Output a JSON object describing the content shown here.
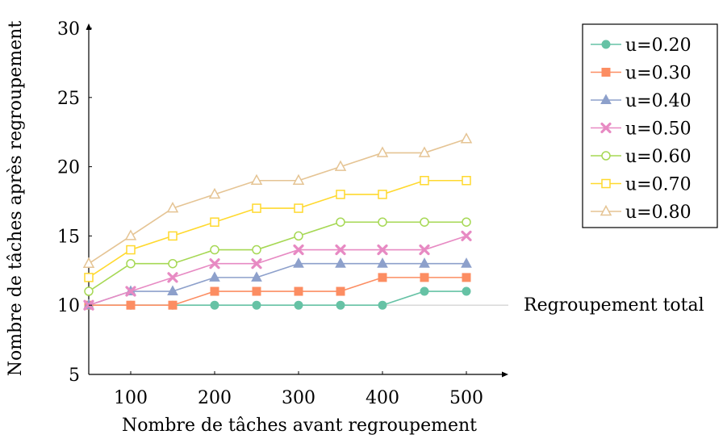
{
  "chart_data": {
    "type": "line",
    "xlabel": "Nombre de tâches avant regroupement",
    "ylabel": "Nombre de tâches après regroupement",
    "xlim": [
      50,
      550
    ],
    "ylim": [
      5,
      30
    ],
    "x_ticks": [
      100,
      200,
      300,
      400,
      500
    ],
    "y_ticks": [
      5,
      10,
      15,
      20,
      25,
      30
    ],
    "x": [
      50,
      100,
      150,
      200,
      250,
      300,
      350,
      400,
      450,
      500
    ],
    "grid": false,
    "legend_position": "top-right, outside plot",
    "reference_line": {
      "y": 10,
      "label": "Regroupement total",
      "color": "#cccccc"
    },
    "series": [
      {
        "name": "u=0.20",
        "color": "#66c2a5",
        "marker": "circle-filled",
        "values": [
          10,
          10,
          10,
          10,
          10,
          10,
          10,
          10,
          11,
          11
        ]
      },
      {
        "name": "u=0.30",
        "color": "#fc8d62",
        "marker": "square-filled",
        "values": [
          10,
          10,
          10,
          11,
          11,
          11,
          11,
          12,
          12,
          12
        ]
      },
      {
        "name": "u=0.40",
        "color": "#8da0cb",
        "marker": "triangle-filled",
        "values": [
          10,
          11,
          11,
          12,
          12,
          13,
          13,
          13,
          13,
          13
        ]
      },
      {
        "name": "u=0.50",
        "color": "#e78ac3",
        "marker": "cross",
        "values": [
          10,
          11,
          12,
          13,
          13,
          14,
          14,
          14,
          14,
          15
        ]
      },
      {
        "name": "u=0.60",
        "color": "#a6d854",
        "marker": "circle-open",
        "values": [
          11,
          13,
          13,
          14,
          14,
          15,
          16,
          16,
          16,
          16
        ]
      },
      {
        "name": "u=0.70",
        "color": "#ffd92f",
        "marker": "square-open",
        "values": [
          12,
          14,
          15,
          16,
          17,
          17,
          18,
          18,
          19,
          19
        ]
      },
      {
        "name": "u=0.80",
        "color": "#e5c494",
        "marker": "triangle-open",
        "values": [
          13,
          15,
          17,
          18,
          19,
          19,
          20,
          21,
          21,
          22
        ]
      }
    ]
  }
}
